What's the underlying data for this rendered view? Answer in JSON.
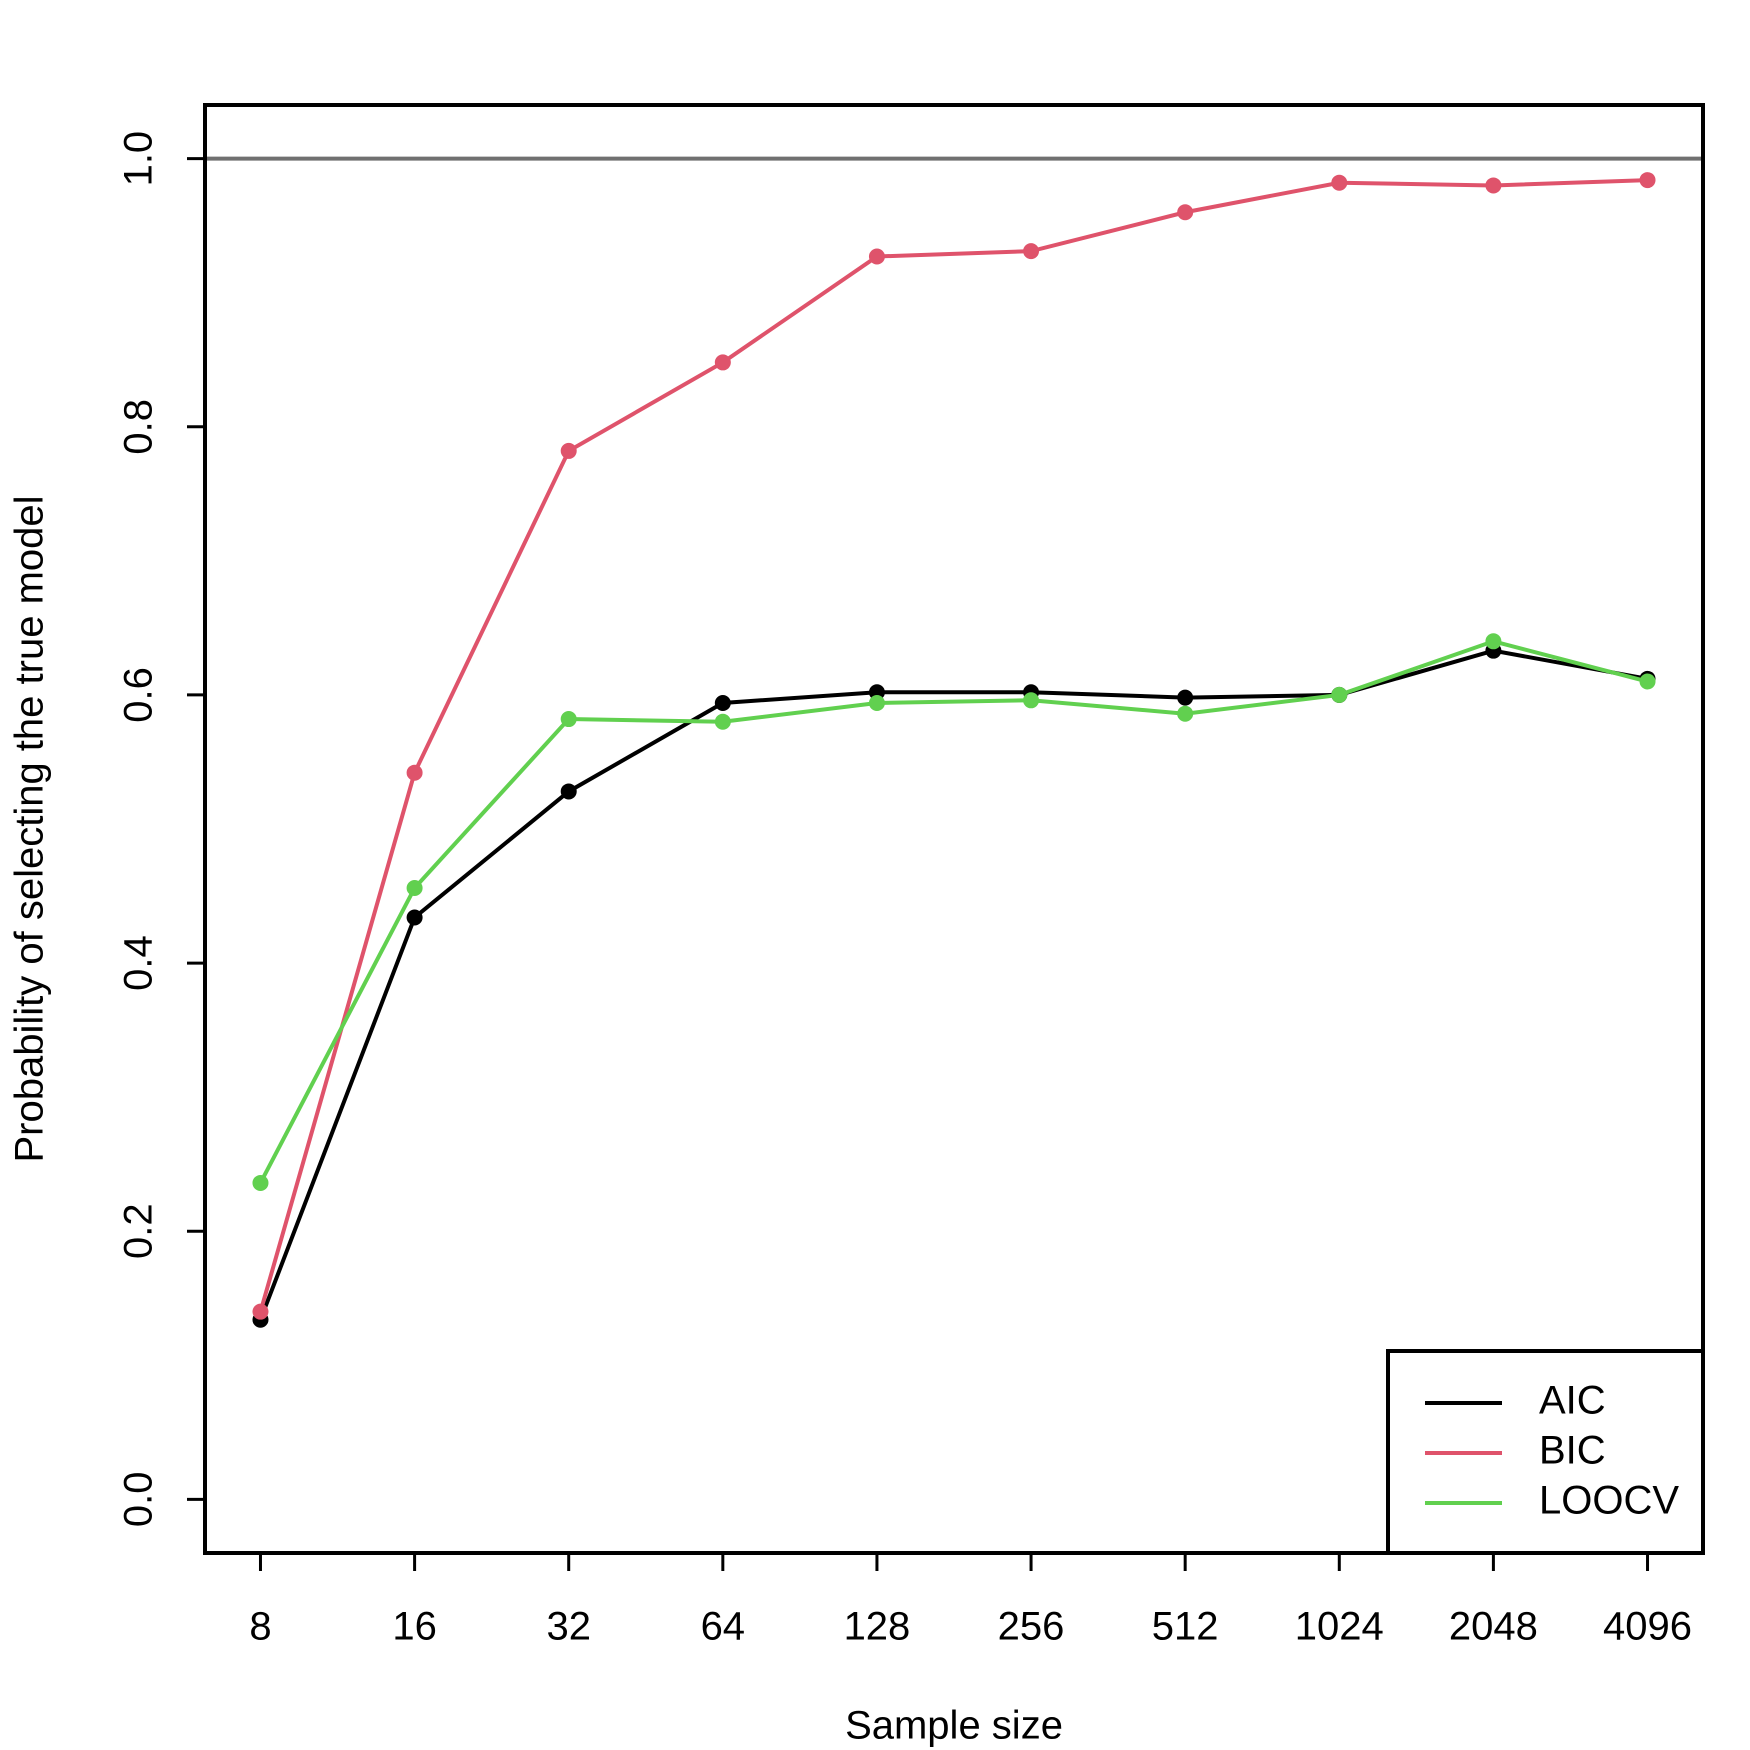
{
  "chart_data": {
    "type": "line",
    "x_label": "Sample size",
    "y_label": "Probability of selecting the true model",
    "categories": [
      "8",
      "16",
      "32",
      "64",
      "128",
      "256",
      "512",
      "1024",
      "2048",
      "4096"
    ],
    "series": [
      {
        "name": "AIC",
        "color": "#000000",
        "values": [
          0.134,
          0.434,
          0.528,
          0.594,
          0.602,
          0.602,
          0.598,
          0.6,
          0.633,
          0.612
        ]
      },
      {
        "name": "BIC",
        "color": "#df536b",
        "values": [
          0.14,
          0.542,
          0.782,
          0.848,
          0.927,
          0.931,
          0.96,
          0.982,
          0.98,
          0.984
        ]
      },
      {
        "name": "LOOCV",
        "color": "#61d04f",
        "values": [
          0.236,
          0.456,
          0.582,
          0.58,
          0.594,
          0.596,
          0.586,
          0.6,
          0.64,
          0.61
        ]
      }
    ],
    "ylim": [
      -0.04,
      1.04
    ],
    "yticks": [
      {
        "value": 0,
        "label": "0.0"
      },
      0.2,
      0.4,
      0.6,
      0.8,
      {
        "value": 1,
        "label": "1.0"
      }
    ],
    "reference_line": 1,
    "reference_color": "#707070",
    "legend": "bottom-right"
  }
}
